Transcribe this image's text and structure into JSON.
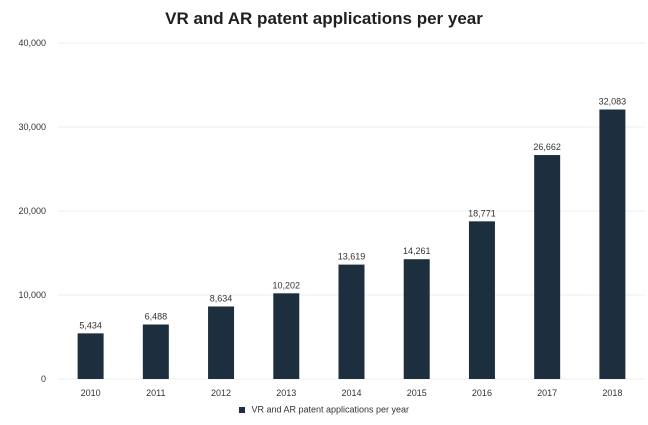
{
  "colors": {
    "bar": "#1d2f3f",
    "grid": "#ececec",
    "text": "#333333"
  },
  "chart_data": {
    "type": "bar",
    "title": "VR and AR patent applications per year",
    "xlabel": "",
    "ylabel": "",
    "categories": [
      "2010",
      "2011",
      "2012",
      "2013",
      "2014",
      "2015",
      "2016",
      "2017",
      "2018"
    ],
    "series": [
      {
        "name": "VR and AR patent applications per year",
        "values": [
          5434,
          6488,
          8634,
          10202,
          13619,
          14261,
          18771,
          26662,
          32083
        ]
      }
    ],
    "value_labels": [
      "5,434",
      "6,488",
      "8,634",
      "10,202",
      "13,619",
      "14,261",
      "18,771",
      "26,662",
      "32,083"
    ],
    "ylim": [
      0,
      40000
    ],
    "y_ticks": [
      0,
      10000,
      20000,
      30000,
      40000
    ],
    "y_tick_labels": [
      "0",
      "10,000",
      "20,000",
      "30,000",
      "40,000"
    ],
    "grid": true,
    "legend_position": "bottom"
  }
}
